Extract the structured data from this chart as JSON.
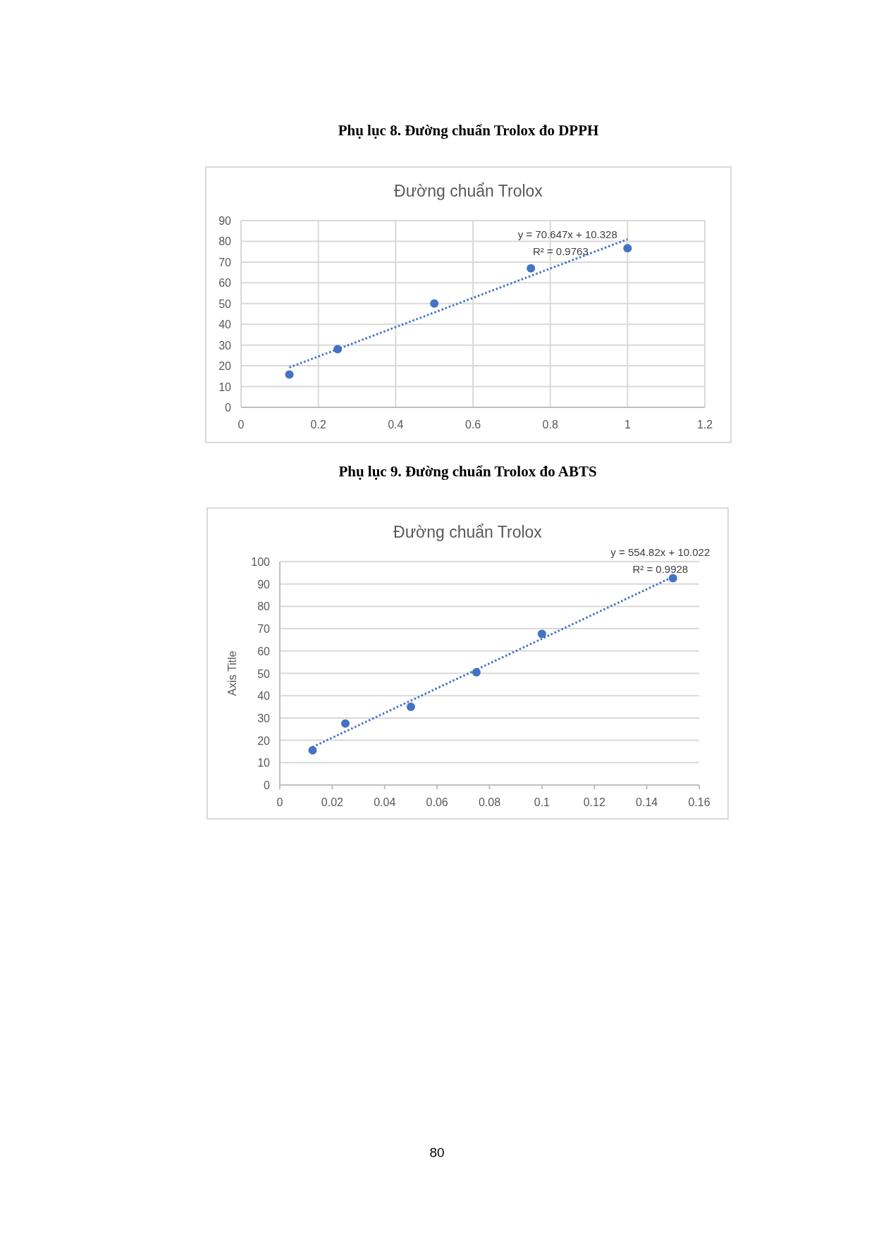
{
  "chart_data": [
    {
      "type": "scatter",
      "title": "Phụ lục 8. Đường chuẩn Trolox đo DPPH",
      "subtitle": "Đường chuẩn Trolox",
      "annotations": [
        "y = 70.647x + 10.328",
        "R² = 0.9763"
      ],
      "xlim": [
        0,
        1.2
      ],
      "xticks": [
        0,
        0.2,
        0.4,
        0.6,
        0.8,
        1,
        1.2
      ],
      "ylim": [
        0,
        90
      ],
      "yticks": [
        0,
        10,
        20,
        30,
        40,
        50,
        60,
        70,
        80,
        90
      ],
      "grid": true,
      "marker": "circle",
      "series": [
        {
          "color": "#4472c4",
          "x": [
            0.125,
            0.25,
            0.5,
            0.75,
            1
          ],
          "values": [
            15.8,
            28,
            50,
            67,
            76.7
          ]
        },
        {
          "type": "line",
          "color": "#4472c4",
          "line_style": "dotted",
          "marker": "none",
          "x": [
            0.125,
            1
          ],
          "values": [
            19.2,
            81
          ]
        }
      ]
    },
    {
      "type": "scatter",
      "title": "Phụ lục 9. Đường chuẩn Trolox đo ABTS",
      "subtitle": "Đường chuẩn Trolox",
      "ylabel": "Axis Title",
      "annotations": [
        "y = 554.82x + 10.022",
        "R² = 0.9928",
        "80"
      ],
      "xlim": [
        0,
        0.16
      ],
      "xticks": [
        0,
        0.02,
        0.04,
        0.06,
        0.08,
        0.1,
        0.12,
        0.14,
        0.16
      ],
      "ylim": [
        0,
        100
      ],
      "yticks": [
        0,
        10,
        20,
        30,
        40,
        50,
        60,
        70,
        80,
        90,
        100
      ],
      "grid": "y",
      "marker": "circle",
      "series": [
        {
          "color": "#4472c4",
          "x": [
            0.0125,
            0.025,
            0.05,
            0.075,
            0.1,
            0.15
          ],
          "values": [
            15.5,
            27.5,
            35,
            50.5,
            67.7,
            92.6
          ]
        },
        {
          "type": "line",
          "color": "#4472c4",
          "line_style": "dotted",
          "marker": "none",
          "x": [
            0.0125,
            0.15
          ],
          "values": [
            17,
            93.2
          ]
        }
      ]
    }
  ]
}
